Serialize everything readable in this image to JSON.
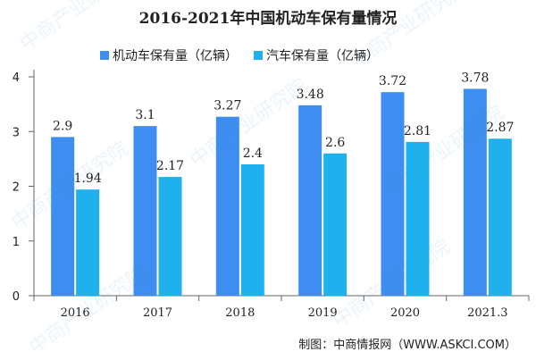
{
  "watermark": "中商产业研究院",
  "chart_data": {
    "type": "bar",
    "title": "2016-2021年中国机动车保有量情况",
    "categories": [
      "2016",
      "2017",
      "2018",
      "2019",
      "2020",
      "2021.3"
    ],
    "series": [
      {
        "name": "机动车保有量（亿辆）",
        "color": "#3D8EF0",
        "values": [
          2.9,
          3.1,
          3.27,
          3.48,
          3.72,
          3.78
        ]
      },
      {
        "name": "汽车保有量（亿辆）",
        "color": "#1EB1EE",
        "values": [
          1.94,
          2.17,
          2.4,
          2.6,
          2.81,
          2.87
        ]
      }
    ],
    "value_labels": [
      [
        "2.9",
        "3.1",
        "3.27",
        "3.48",
        "3.72",
        "3.78"
      ],
      [
        "1.94",
        "2.17",
        "2.4",
        "2.6",
        "2.81",
        "2.87"
      ]
    ],
    "yticks": [
      "0",
      "1",
      "2",
      "3",
      "4"
    ],
    "ylim": [
      0,
      4
    ],
    "grid": false,
    "legend_position": "top"
  },
  "footer": "制图：中商情报网（WWW.ASKCI.COM）"
}
